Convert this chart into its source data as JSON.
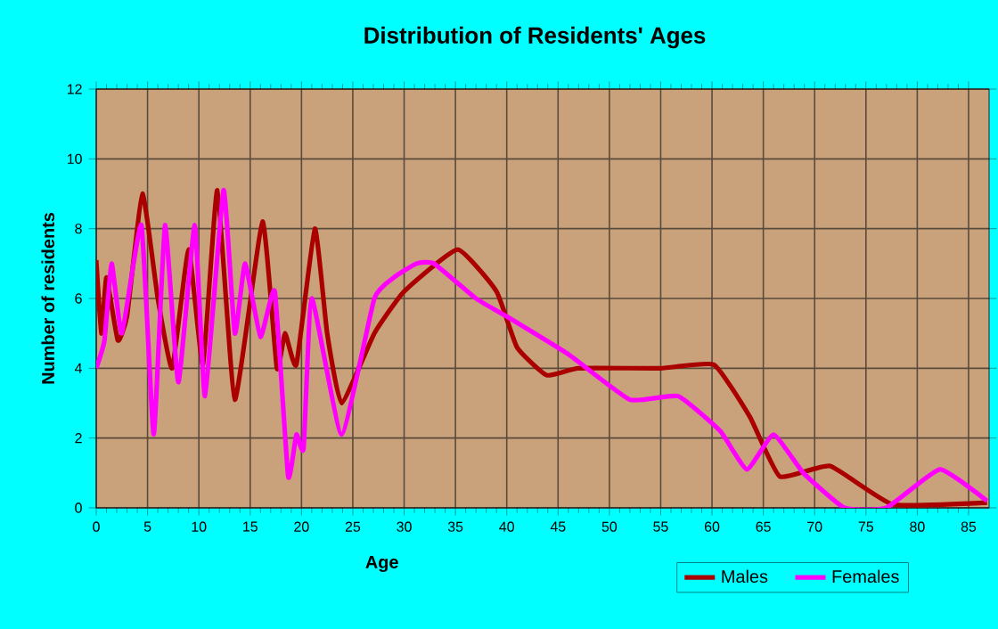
{
  "chart_data": {
    "type": "line",
    "title": "Distribution of Residents' Ages",
    "xlabel": "Age",
    "ylabel": "Number of residents",
    "xlim": [
      0,
      87
    ],
    "xticks": [
      0,
      5,
      10,
      15,
      20,
      25,
      30,
      35,
      40,
      45,
      50,
      55,
      60,
      65,
      70,
      75,
      80,
      85
    ],
    "ylim": [
      0,
      12
    ],
    "yticks": [
      0,
      2,
      4,
      6,
      8,
      10,
      12
    ],
    "grid": true,
    "legend": "bottom",
    "marker": "none",
    "line_style": "solid",
    "series": [
      {
        "name": "Males",
        "color": "#aa0000",
        "x": [
          0,
          0.5,
          1,
          2.1,
          3,
          4.5,
          6,
          7.4,
          9,
          10.4,
          11.8,
          13.5,
          16.2,
          17.6,
          18.4,
          19.5,
          21.3,
          22.5,
          23.9,
          27.1,
          30,
          35.2,
          39,
          41,
          43.9,
          47,
          55,
          60.2,
          63.7,
          66.6,
          71.5,
          77.6,
          86.8
        ],
        "values": [
          7.1,
          5,
          6.6,
          4.8,
          5.5,
          9.0,
          6,
          4.0,
          7.4,
          4.1,
          9.1,
          3.1,
          8.2,
          4.0,
          5.0,
          4.1,
          8.0,
          5,
          3.0,
          5.0,
          6.2,
          7.4,
          6.2,
          4.6,
          3.8,
          4.0,
          4.0,
          4.1,
          2.6,
          0.9,
          1.2,
          0.1,
          0.15
        ]
      },
      {
        "name": "Females",
        "color": "#ff00ff",
        "x": [
          0,
          0.8,
          1.5,
          2.5,
          4.4,
          5.6,
          6.7,
          8.0,
          9.6,
          10.6,
          12.4,
          13.5,
          14.5,
          16.0,
          17.4,
          18.7,
          19.5,
          20.2,
          21.0,
          23.9,
          27.1,
          29.0,
          31.2,
          32.9,
          37.0,
          39.9,
          46,
          52.0,
          56.7,
          60.8,
          63.4,
          66.0,
          68.9,
          72.9,
          77,
          82.2,
          86.8
        ],
        "values": [
          4.0,
          4.8,
          7.0,
          5.0,
          8.1,
          2.1,
          8.1,
          3.6,
          8.1,
          3.2,
          9.1,
          5.0,
          7.0,
          4.9,
          6.2,
          0.9,
          2.1,
          1.7,
          6.0,
          2.1,
          6.0,
          6.6,
          7.0,
          7.0,
          6.0,
          5.5,
          4.4,
          3.1,
          3.2,
          2.2,
          1.1,
          2.1,
          1.0,
          0.0,
          0.0,
          1.1,
          0.2
        ]
      }
    ]
  }
}
